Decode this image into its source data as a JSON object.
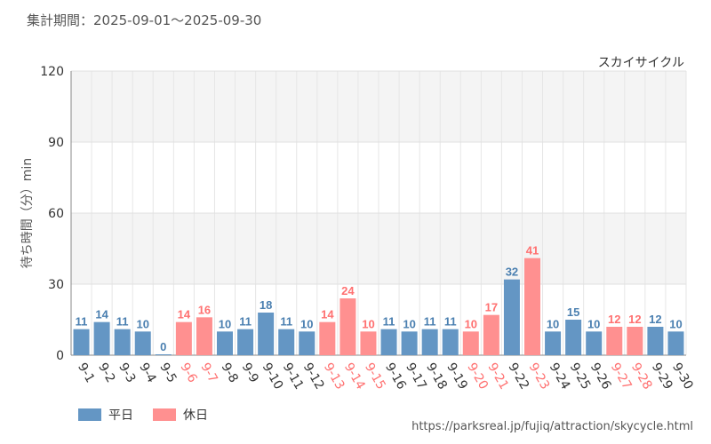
{
  "page": {
    "title": "集計期間：2025-09-01〜2025-09-30",
    "source": "https://parksreal.jp/fujiq/attraction/skycycle.html"
  },
  "colors": {
    "weekday": "#6496c4",
    "holiday": "#ff9090",
    "weekday_label": "#4a7fb0",
    "holiday_label": "#ff7070"
  },
  "chart_data": {
    "type": "bar",
    "title": "スカイサイクル",
    "xlabel": "",
    "ylabel": "待ち時間（分）min",
    "ylim": [
      0,
      120
    ],
    "yticks": [
      0,
      30,
      60,
      90,
      120
    ],
    "categories": [
      "9-1",
      "9-2",
      "9-3",
      "9-4",
      "9-5",
      "9-6",
      "9-7",
      "9-8",
      "9-9",
      "9-10",
      "9-11",
      "9-12",
      "9-13",
      "9-14",
      "9-15",
      "9-16",
      "9-17",
      "9-18",
      "9-19",
      "9-20",
      "9-21",
      "9-22",
      "9-23",
      "9-24",
      "9-25",
      "9-26",
      "9-27",
      "9-28",
      "9-29",
      "9-30"
    ],
    "values": [
      11,
      14,
      11,
      10,
      0,
      14,
      16,
      10,
      11,
      18,
      11,
      10,
      14,
      24,
      10,
      11,
      10,
      11,
      11,
      10,
      17,
      32,
      41,
      10,
      15,
      10,
      12,
      12,
      12,
      10
    ],
    "day_type": [
      "weekday",
      "weekday",
      "weekday",
      "weekday",
      "weekday",
      "holiday",
      "holiday",
      "weekday",
      "weekday",
      "weekday",
      "weekday",
      "weekday",
      "holiday",
      "holiday",
      "holiday",
      "weekday",
      "weekday",
      "weekday",
      "weekday",
      "holiday",
      "holiday",
      "weekday",
      "holiday",
      "weekday",
      "weekday",
      "weekday",
      "holiday",
      "holiday",
      "weekday",
      "weekday"
    ],
    "legend": [
      {
        "label": "平日",
        "key": "weekday"
      },
      {
        "label": "休日",
        "key": "holiday"
      }
    ]
  }
}
